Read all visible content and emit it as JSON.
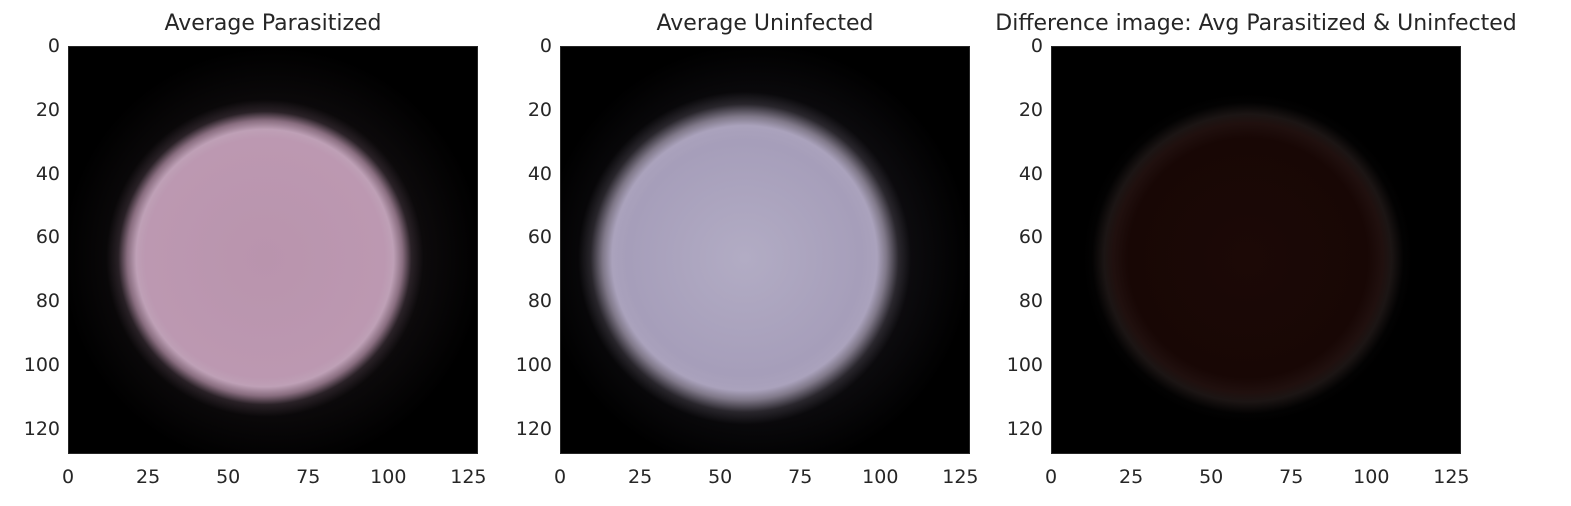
{
  "chart_data": [
    {
      "type": "image",
      "title": "Average Parasitized",
      "xticks": [
        "0",
        "25",
        "50",
        "75",
        "100",
        "125"
      ],
      "yticks": [
        "0",
        "20",
        "40",
        "60",
        "80",
        "100",
        "120"
      ],
      "xlim": [
        0,
        128
      ],
      "ylim": [
        128,
        0
      ],
      "image": {
        "description_color": "#b99aae",
        "center_color": "#b894ad",
        "edge_color": "#000000"
      }
    },
    {
      "type": "image",
      "title": "Average Uninfected",
      "xticks": [
        "0",
        "25",
        "50",
        "75",
        "100",
        "125"
      ],
      "yticks": [
        "0",
        "20",
        "40",
        "60",
        "80",
        "100",
        "120"
      ],
      "xlim": [
        0,
        128
      ],
      "ylim": [
        128,
        0
      ],
      "image": {
        "description_color": "#a79fb9",
        "center_color": "#b1abc2",
        "edge_color": "#000000"
      }
    },
    {
      "type": "image",
      "title": "Difference image: Avg Parasitized & Uninfected",
      "xticks": [
        "0",
        "25",
        "50",
        "75",
        "100",
        "125"
      ],
      "yticks": [
        "0",
        "20",
        "40",
        "60",
        "80",
        "100",
        "120"
      ],
      "xlim": [
        0,
        128
      ],
      "ylim": [
        128,
        0
      ],
      "image": {
        "description_color": "#150605",
        "center_color": "#1a0805",
        "edge_color": "#000000"
      }
    }
  ]
}
